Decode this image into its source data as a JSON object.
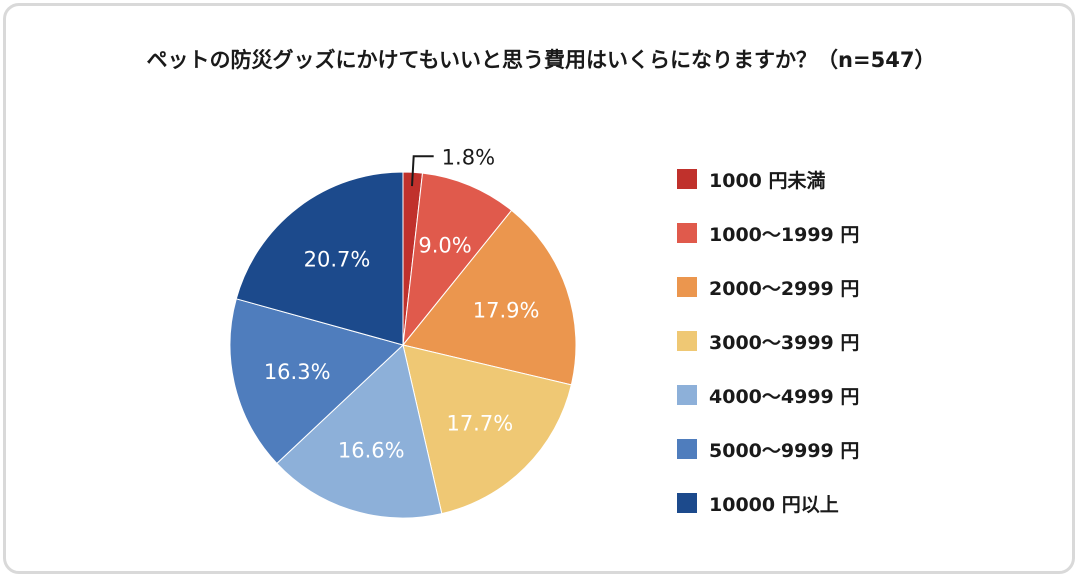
{
  "chart_data": {
    "type": "pie",
    "title": "ペットの防災グッズにかけてもいいと思う費用はいくらになりますか？（n=547）",
    "legend_position": "right",
    "start": "top, clockwise",
    "slices": [
      {
        "label": "1000 円未満",
        "value": 1.8,
        "value_label": "1.8%",
        "color": "#c0312c"
      },
      {
        "label": "1000〜1999 円",
        "value": 9.0,
        "value_label": "9.0%",
        "color": "#e05a4c"
      },
      {
        "label": "2000〜2999 円",
        "value": 17.9,
        "value_label": "17.9%",
        "color": "#eb964e"
      },
      {
        "label": "3000〜3999 円",
        "value": 17.7,
        "value_label": "17.7%",
        "color": "#efc874"
      },
      {
        "label": "4000〜4999 円",
        "value": 16.6,
        "value_label": "16.6%",
        "color": "#8db0d9"
      },
      {
        "label": "5000〜9999 円",
        "value": 16.3,
        "value_label": "16.3%",
        "color": "#4f7dbd"
      },
      {
        "label": "10000 円以上",
        "value": 20.7,
        "value_label": "20.7%",
        "color": "#1c4a8c"
      }
    ]
  }
}
